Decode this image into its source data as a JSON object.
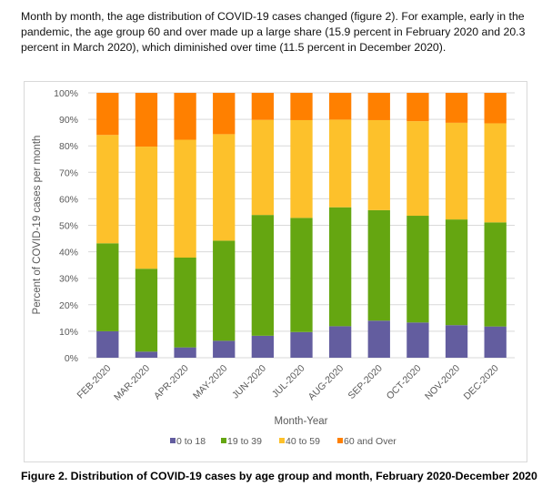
{
  "intro_text": "Month by month, the age distribution of COVID-19 cases changed (figure 2). For example, early in the pandemic, the age group 60 and over made up a large share (15.9 percent in February 2020 and 20.3 percent in March 2020), which diminished over time (11.5 percent in December 2020).",
  "caption": "Figure 2. Distribution of COVID-19 cases by age group and month, February 2020-December 2020",
  "chart_data": {
    "type": "bar",
    "stacked": "percent",
    "title": "",
    "xlabel": "Month-Year",
    "ylabel": "Percent of COVID-19 cases per month",
    "ylim": [
      0,
      100
    ],
    "yticks": [
      "0%",
      "10%",
      "20%",
      "30%",
      "40%",
      "50%",
      "60%",
      "70%",
      "80%",
      "90%",
      "100%"
    ],
    "grid": true,
    "legend_position": "bottom",
    "categories": [
      "FEB-2020",
      "MAR-2020",
      "APR-2020",
      "MAY-2020",
      "JUN-2020",
      "JUL-2020",
      "AUG-2020",
      "SEP-2020",
      "OCT-2020",
      "NOV-2020",
      "DEC-2020"
    ],
    "series": [
      {
        "name": "0 to 18",
        "color": "#635d9f",
        "values": [
          10.0,
          2.3,
          3.9,
          6.4,
          8.3,
          9.7,
          11.9,
          14.0,
          13.3,
          12.3,
          11.8
        ]
      },
      {
        "name": "19 to 39",
        "color": "#65a611",
        "values": [
          33.2,
          31.3,
          33.9,
          37.8,
          45.6,
          43.1,
          44.9,
          41.7,
          40.3,
          39.9,
          39.3
        ]
      },
      {
        "name": "40 to 59",
        "color": "#fdc12b",
        "values": [
          40.9,
          46.1,
          44.5,
          40.2,
          35.9,
          36.9,
          33.1,
          34.0,
          35.7,
          36.5,
          37.4
        ]
      },
      {
        "name": "60 and Over",
        "color": "#ff8000",
        "values": [
          15.9,
          20.3,
          17.7,
          15.6,
          10.2,
          10.3,
          10.1,
          10.3,
          10.7,
          11.3,
          11.5
        ]
      }
    ]
  }
}
